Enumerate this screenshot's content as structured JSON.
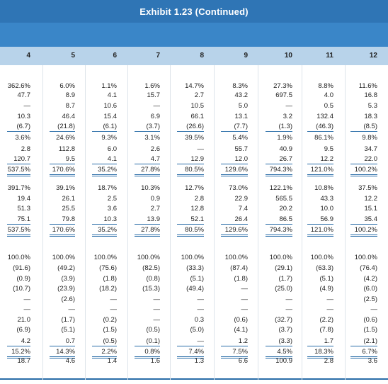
{
  "title": "Exhibit 1.23 (Continued)",
  "columns": [
    "4",
    "5",
    "6",
    "7",
    "8",
    "9",
    "10",
    "11",
    "12"
  ],
  "rows": [
    {
      "style": "",
      "cells": [
        "362.6%",
        "6.0%",
        "1.1%",
        "1.6%",
        "14.7%",
        "8.3%",
        "27.3%",
        "8.8%",
        "11.6%"
      ]
    },
    {
      "style": "",
      "cells": [
        "47.7",
        "8.9",
        "4.1",
        "15.7",
        "2.7",
        "43.2",
        "697.5",
        "4.0",
        "16.8"
      ]
    },
    {
      "style": "",
      "cells": [
        "—",
        "8.7",
        "10.6",
        "—",
        "10.5",
        "5.0",
        "—",
        "0.5",
        "5.3"
      ]
    },
    {
      "style": "",
      "cells": [
        "10.3",
        "46.4",
        "15.4",
        "6.9",
        "66.1",
        "13.1",
        "3.2",
        "132.4",
        "18.3"
      ]
    },
    {
      "style": "ul",
      "cells": [
        "(6.7)",
        "(21.8)",
        "(6.1)",
        "(3.7)",
        "(26.6)",
        "(7.7)",
        "(1.3)",
        "(46.3)",
        "(8.5)"
      ]
    },
    {
      "style": "",
      "cells": [
        "3.6%",
        "24.6%",
        "9.3%",
        "3.1%",
        "39.5%",
        "5.4%",
        "1.9%",
        "86.1%",
        "9.8%"
      ]
    },
    {
      "style": "",
      "cells": [
        "2.8",
        "112.8",
        "6.0",
        "2.6",
        "—",
        "55.7",
        "40.9",
        "9.5",
        "34.7"
      ]
    },
    {
      "style": "ul",
      "cells": [
        "120.7",
        "9.5",
        "4.1",
        "4.7",
        "12.9",
        "12.0",
        "26.7",
        "12.2",
        "22.0"
      ]
    },
    {
      "style": "dul",
      "cells": [
        "537.5%",
        "170.6%",
        "35.2%",
        "27.8%",
        "80.5%",
        "129.6%",
        "794.3%",
        "121.0%",
        "100.2%"
      ]
    },
    {
      "style": "",
      "cells": [
        "391.7%",
        "39.1%",
        "18.7%",
        "10.3%",
        "12.7%",
        "73.0%",
        "122.1%",
        "10.8%",
        "37.5%"
      ]
    },
    {
      "style": "",
      "cells": [
        "19.4",
        "26.1",
        "2.5",
        "0.9",
        "2.8",
        "22.9",
        "565.5",
        "43.3",
        "12.2"
      ]
    },
    {
      "style": "",
      "cells": [
        "51.3",
        "25.5",
        "3.6",
        "2.7",
        "12.8",
        "7.4",
        "20.2",
        "10.0",
        "15.1"
      ]
    },
    {
      "style": "ul",
      "cells": [
        "75.1",
        "79.8",
        "10.3",
        "13.9",
        "52.1",
        "26.4",
        "86.5",
        "56.9",
        "35.4"
      ]
    },
    {
      "style": "dul",
      "cells": [
        "537.5%",
        "170.6%",
        "35.2%",
        "27.8%",
        "80.5%",
        "129.6%",
        "794.3%",
        "121.0%",
        "100.2%"
      ]
    },
    {
      "style": "",
      "cells": [
        "100.0%",
        "100.0%",
        "100.0%",
        "100.0%",
        "100.0%",
        "100.0%",
        "100.0%",
        "100.0%",
        "100.0%"
      ]
    },
    {
      "style": "",
      "cells": [
        "(91.6)",
        "(49.2)",
        "(75.6)",
        "(82.5)",
        "(33.3)",
        "(87.4)",
        "(29.1)",
        "(63.3)",
        "(76.4)"
      ]
    },
    {
      "style": "",
      "cells": [
        "(0.9)",
        "(3.9)",
        "(1.8)",
        "(0.8)",
        "(5.1)",
        "(1.8)",
        "(1.7)",
        "(5.1)",
        "(4.2)"
      ]
    },
    {
      "style": "",
      "cells": [
        "(10.7)",
        "(23.9)",
        "(18.2)",
        "(15.3)",
        "(49.4)",
        "—",
        "(25.0)",
        "(4.9)",
        "(6.0)"
      ]
    },
    {
      "style": "",
      "cells": [
        "—",
        "(2.6)",
        "—",
        "—",
        "—",
        "—",
        "—",
        "—",
        "(2.5)"
      ]
    },
    {
      "style": "",
      "cells": [
        "—",
        "—",
        "—",
        "—",
        "—",
        "—",
        "—",
        "—",
        "—"
      ]
    },
    {
      "style": "",
      "cells": [
        "21.0",
        "(1.7)",
        "(0.2)",
        "—",
        "0.3",
        "(0.6)",
        "(32.7)",
        "(2.2)",
        "(0.6)"
      ]
    },
    {
      "style": "",
      "cells": [
        "(6.9)",
        "(5.1)",
        "(1.5)",
        "(0.5)",
        "(5.0)",
        "(4.1)",
        "(3.7)",
        "(7.8)",
        "(1.5)"
      ]
    },
    {
      "style": "ul",
      "cells": [
        "4.2",
        "0.7",
        "(0.5)",
        "(0.1)",
        "—",
        "1.2",
        "(3.3)",
        "1.7",
        "(2.1)"
      ]
    },
    {
      "style": "dul",
      "cells": [
        "15.2%",
        "14.3%",
        "2.2%",
        "0.8%",
        "7.4%",
        "7.5%",
        "4.5%",
        "18.3%",
        "6.7%"
      ]
    },
    {
      "style": "",
      "cells": [
        "18.7",
        "4.6",
        "1.4",
        "1.6",
        "1.3",
        "6.6",
        "100.9",
        "2.8",
        "3.6"
      ]
    }
  ]
}
